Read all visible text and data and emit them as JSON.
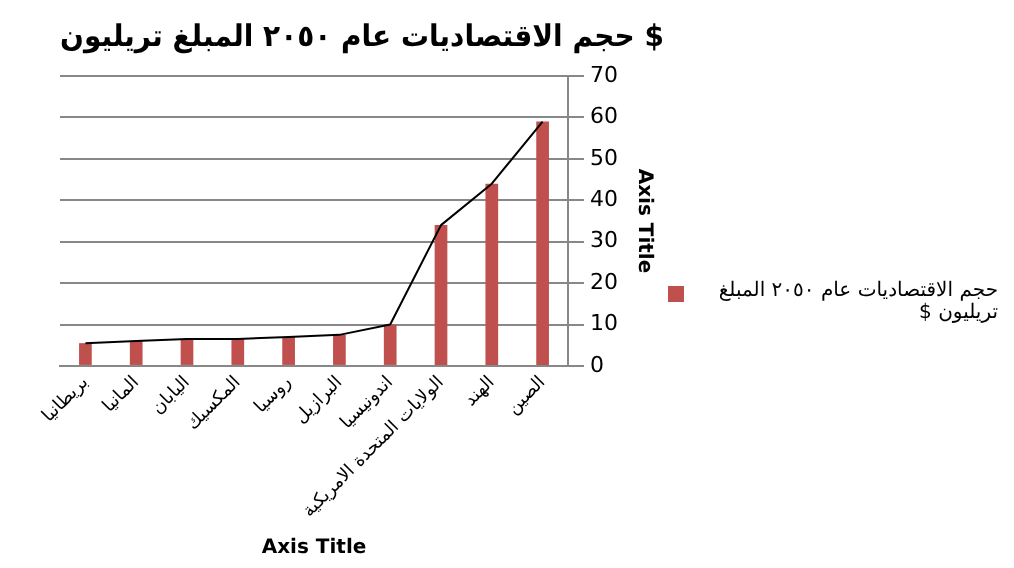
{
  "chart_data": {
    "type": "bar",
    "title": "حجم الاقتصاديات عام ٢٠٥٠ المبلغ تريليون $",
    "xlabel": "Axis Title",
    "ylabel": "Axis Title",
    "categories": [
      "بريطانيا",
      "المانيا",
      "اليابان",
      "المكسيك",
      "روسيا",
      "البرازيل",
      "اندونيسيا",
      "الولايات المتحدة الامريكية",
      "الهند",
      "الصين"
    ],
    "series": [
      {
        "name": "حجم الاقتصاديات عام ٢٠٥٠ المبلغ تريليون $",
        "color": "#c0504d",
        "values": [
          5.5,
          6,
          6.5,
          6.5,
          7,
          7.5,
          10,
          34,
          44,
          59
        ]
      },
      {
        "type": "line",
        "color": "#000000",
        "marker": "none",
        "values": [
          5.5,
          6,
          6.5,
          6.5,
          7,
          7.5,
          10,
          34,
          44,
          59
        ]
      }
    ],
    "ylim": [
      0,
      70
    ],
    "yticks": [
      0,
      10,
      20,
      30,
      40,
      50,
      60,
      70
    ],
    "grid": "y",
    "legend": "right"
  }
}
